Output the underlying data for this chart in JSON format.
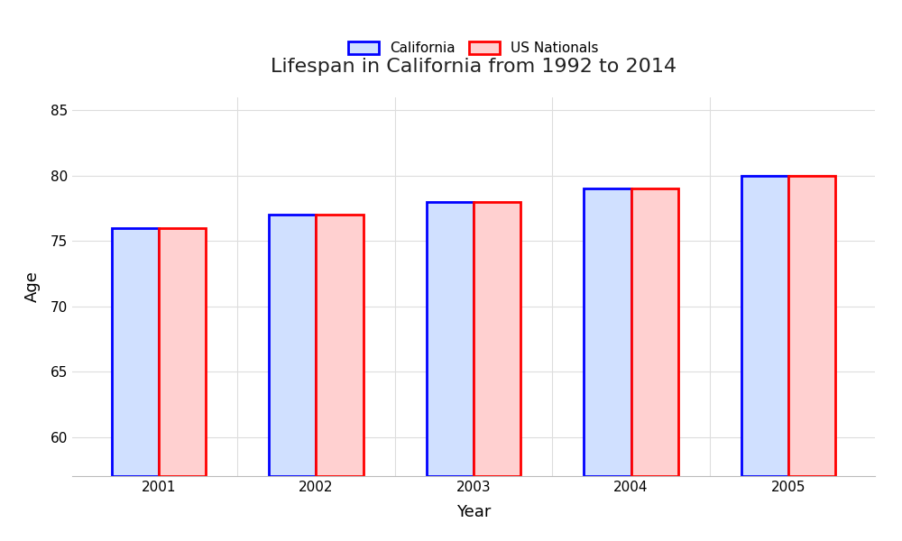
{
  "title": "Lifespan in California from 1992 to 2014",
  "xlabel": "Year",
  "ylabel": "Age",
  "years": [
    2001,
    2002,
    2003,
    2004,
    2005
  ],
  "california_values": [
    76,
    77,
    78,
    79,
    80
  ],
  "us_nationals_values": [
    76,
    77,
    78,
    79,
    80
  ],
  "california_color": "#0000ff",
  "california_face": "#d0e0ff",
  "us_nationals_color": "#ff0000",
  "us_nationals_face": "#ffd0d0",
  "ylim": [
    57,
    86
  ],
  "ymin": 57,
  "yticks": [
    60,
    65,
    70,
    75,
    80,
    85
  ],
  "bar_width": 0.3,
  "background_color": "#ffffff",
  "plot_bg_color": "#ffffff",
  "grid_color": "#dddddd",
  "title_fontsize": 16,
  "axis_fontsize": 13,
  "tick_fontsize": 11,
  "legend_labels": [
    "California",
    "US Nationals"
  ]
}
